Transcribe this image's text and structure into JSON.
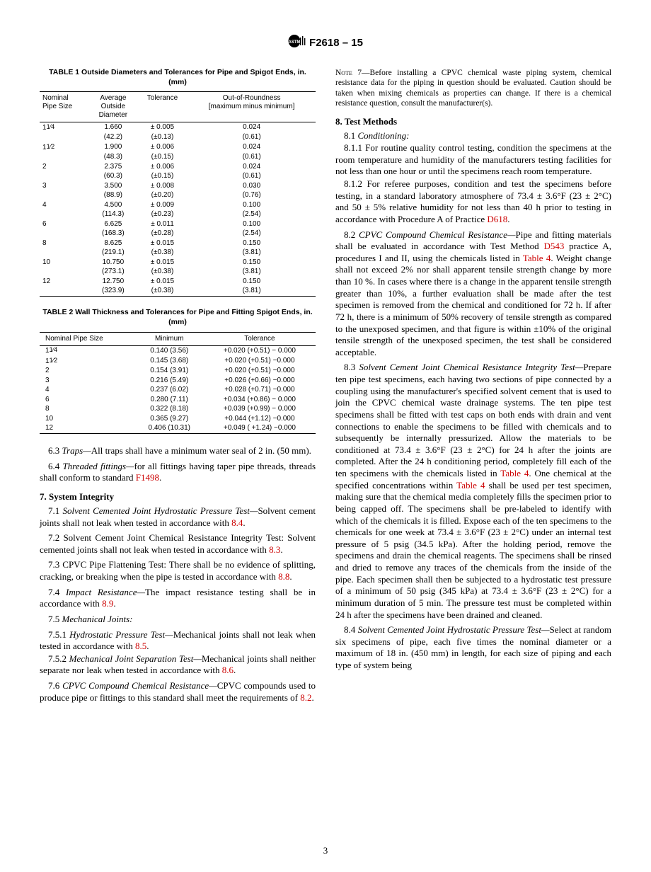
{
  "header": {
    "designation": "F2618 – 15"
  },
  "table1": {
    "title": "TABLE 1 Outside Diameters and Tolerances for Pipe and Spigot Ends, in. (mm)",
    "headers": [
      "Nominal Pipe Size",
      "Average Outside Diameter",
      "Tolerance",
      "Out-of-Roundness [maximum minus minimum]"
    ],
    "rows": [
      {
        "size": "1¼",
        "avg": "1.660",
        "avg_mm": "(42.2)",
        "tol": "± 0.005",
        "tol_mm": "(±0.13)",
        "oor": "0.024",
        "oor_mm": "(0.61)"
      },
      {
        "size": "1½",
        "avg": "1.900",
        "avg_mm": "(48.3)",
        "tol": "± 0.006",
        "tol_mm": "(±0.15)",
        "oor": "0.024",
        "oor_mm": "(0.61)"
      },
      {
        "size": "2",
        "avg": "2.375",
        "avg_mm": "(60.3)",
        "tol": "± 0.006",
        "tol_mm": "(±0.15)",
        "oor": "0.024",
        "oor_mm": "(0.61)"
      },
      {
        "size": "3",
        "avg": "3.500",
        "avg_mm": "(88.9)",
        "tol": "± 0.008",
        "tol_mm": "(±0.20)",
        "oor": "0.030",
        "oor_mm": "(0.76)"
      },
      {
        "size": "4",
        "avg": "4.500",
        "avg_mm": "(114.3)",
        "tol": "± 0.009",
        "tol_mm": "(±0.23)",
        "oor": "0.100",
        "oor_mm": "(2.54)"
      },
      {
        "size": "6",
        "avg": "6.625",
        "avg_mm": "(168.3)",
        "tol": "± 0.011",
        "tol_mm": "(±0.28)",
        "oor": "0.100",
        "oor_mm": "(2.54)"
      },
      {
        "size": "8",
        "avg": "8.625",
        "avg_mm": "(219.1)",
        "tol": "± 0.015",
        "tol_mm": "(±0.38)",
        "oor": "0.150",
        "oor_mm": "(3.81)"
      },
      {
        "size": "10",
        "avg": "10.750",
        "avg_mm": "(273.1)",
        "tol": "± 0.015",
        "tol_mm": "(±0.38)",
        "oor": "0.150",
        "oor_mm": "(3.81)"
      },
      {
        "size": "12",
        "avg": "12.750",
        "avg_mm": "(323.9)",
        "tol": "± 0.015",
        "tol_mm": "(±0.38)",
        "oor": "0.150",
        "oor_mm": "(3.81)"
      }
    ]
  },
  "table2": {
    "title": "TABLE 2 Wall Thickness and Tolerances for Pipe and Fitting Spigot Ends, in. (mm)",
    "headers": [
      "Nominal Pipe Size",
      "Minimum",
      "Tolerance"
    ],
    "rows": [
      {
        "size": "1¼",
        "min": "0.140 (3.56)",
        "tol": "+0.020 (+0.51) − 0.000"
      },
      {
        "size": "1½",
        "min": "0.145 (3.68)",
        "tol": "+0.020 (+0.51) −0.000"
      },
      {
        "size": "2",
        "min": "0.154 (3.91)",
        "tol": "+0.020 (+0.51) −0.000"
      },
      {
        "size": "3",
        "min": "0.216 (5.49)",
        "tol": "+0.026 (+0.66) −0.000"
      },
      {
        "size": "4",
        "min": "0.237 (6.02)",
        "tol": "+0.028 (+0.71) −0.000"
      },
      {
        "size": "6",
        "min": "0.280 (7.11)",
        "tol": "+0.034 (+0.86) − 0.000"
      },
      {
        "size": "8",
        "min": "0.322 (8.18)",
        "tol": "+0.039 (+0.99) − 0.000"
      },
      {
        "size": "10",
        "min": "0.365 (9.27)",
        "tol": "+0.044 (+1.12) −0.000"
      },
      {
        "size": "12",
        "min": "0.406 (10.31)",
        "tol": "+0.049 ( +1.24) −0.000"
      }
    ]
  },
  "left_paragraphs": {
    "p63_a": "6.3 ",
    "p63_b": "Traps—",
    "p63_c": "All traps shall have a minimum water seal of 2 in. (50 mm).",
    "p64_a": "6.4 ",
    "p64_b": "Threaded fittings—",
    "p64_c": "for all fittings having taper pipe threads, threads shall conform to standard ",
    "p64_link": "F1498",
    "p64_d": ".",
    "h7": "7. System Integrity",
    "p71_a": "7.1 ",
    "p71_b": "Solvent Cemented Joint Hydrostatic Pressure Test—",
    "p71_c": "Solvent cement joints shall not leak when tested in accordance with ",
    "p71_link": "8.4",
    "p71_d": ".",
    "p72_a": "7.2 Solvent Cement Joint Chemical Resistance Integrity Test: Solvent cemented joints shall not leak when tested in accordance with ",
    "p72_link": "8.3",
    "p72_b": ".",
    "p73_a": "7.3 CPVC Pipe Flattening Test: There shall be no evidence of splitting, cracking, or breaking when the pipe is tested in accordance with ",
    "p73_link": "8.8",
    "p73_b": ".",
    "p74_a": "7.4 ",
    "p74_b": "Impact Resistance—",
    "p74_c": "The impact resistance testing shall be in accordance with ",
    "p74_link": "8.9",
    "p74_d": ".",
    "p75": "7.5 ",
    "p75_b": "Mechanical Joints:",
    "p751_a": "7.5.1 ",
    "p751_b": "Hydrostatic Pressure Test—",
    "p751_c": "Mechanical joints shall not leak when tested in accordance with ",
    "p751_link": "8.5",
    "p751_d": ".",
    "p752_a": "7.5.2 ",
    "p752_b": "Mechanical Joint Separation Test—",
    "p752_c": "Mechanical joints shall neither separate nor leak when tested in accordance with ",
    "p752_link": "8.6",
    "p752_d": ".",
    "p76_a": "7.6 ",
    "p76_b": "CPVC Compound Chemical Resistance—",
    "p76_c": "CPVC compounds used to produce pipe or fittings to this standard shall meet the requirements of ",
    "p76_link": "8.2",
    "p76_d": "."
  },
  "right_paragraphs": {
    "note7_label": "Note",
    "note7_num": " 7—",
    "note7_body": "Before installing a CPVC chemical waste piping system, chemical resistance data for the piping in question should be evaluated. Caution should be taken when mixing chemicals as properties can change. If there is a chemical resistance question, consult the manufacturer(s).",
    "h8": "8. Test Methods",
    "p81": "8.1 ",
    "p81_b": "Conditioning:",
    "p811": "8.1.1 For routine quality control testing, condition the specimens at the room temperature and humidity of the manufacturers testing facilities for not less than one hour or until the specimens reach room temperature.",
    "p812_a": "8.1.2  For referee purposes, condition and test the specimens before testing, in a standard laboratory atmosphere of 73.4 ± 3.6°F (23 ± 2°C) and 50 ± 5% relative humidity for not less than 40 h prior to testing in accordance with Procedure A of Practice ",
    "p812_link": "D618",
    "p812_b": ".",
    "p82_a": "8.2 ",
    "p82_b": "CPVC Compound Chemical Resistance—",
    "p82_c": "Pipe and fitting materials shall be evaluated in accordance with Test Method ",
    "p82_link1": "D543",
    "p82_d": " practice A, procedures I and II, using the chemicals listed in ",
    "p82_link2": "Table 4",
    "p82_e": ". Weight change shall not exceed 2% nor shall apparent tensile strength change by more than 10 %. In cases where there is a change in the apparent tensile strength greater than 10%, a further evaluation shall be made after the test specimen is removed from the chemical and conditioned for 72 h. If after 72 h, there is a minimum of 50% recovery of tensile strength as compared to the unexposed specimen, and that figure is within ±10% of the original tensile strength of the unexposed specimen, the test shall be considered acceptable.",
    "p83_a": "8.3 ",
    "p83_b": "Solvent Cement Joint Chemical Resistance Integrity Test—",
    "p83_c": "Prepare ten pipe test specimens, each having two sections of pipe connected by a coupling using the manufacturer's specified solvent cement that is used to join the CPVC chemical waste drainage systems. The ten pipe test specimens shall be fitted with test caps on both ends with drain and vent connections to enable the specimens to be filled with chemicals and to subsequently be internally pressurized. Allow the materials to be conditioned at 73.4 ± 3.6°F (23 ± 2°C) for 24 h after the joints are completed. After the 24 h conditioning period, completely fill each of the ten specimens with the chemicals listed in ",
    "p83_link1": "Table 4",
    "p83_d": ". One chemical at the specified concentrations within ",
    "p83_link2": "Table 4",
    "p83_e": " shall be used per test specimen, making sure that the chemical media completely fills the specimen prior to being capped off. The specimens shall be pre-labeled to identify with which of the chemicals it is filled. Expose each of the ten specimens to the chemicals for one week at 73.4 ± 3.6°F (23 ± 2°C) under an internal test pressure of 5 psig (34.5 kPa). After the holding period, remove the specimens and drain the chemical reagents. The specimens shall be rinsed and dried to remove any traces of the chemicals from the inside of the pipe. Each specimen shall then be subjected to a hydrostatic test pressure of a minimum of 50 psig (345 kPa) at 73.4 ± 3.6°F (23 ± 2°C) for a minimum duration of 5 min. The pressure test must be completed within 24 h after the specimens have been drained and cleaned.",
    "p84_a": "8.4 ",
    "p84_b": "Solvent Cemented Joint Hydrostatic Pressure Test—",
    "p84_c": "Select at random six specimens of pipe, each five times the nominal diameter or a maximum of 18 in. (450 mm) in length, for each size of piping and each type of system being"
  },
  "page_number": "3"
}
